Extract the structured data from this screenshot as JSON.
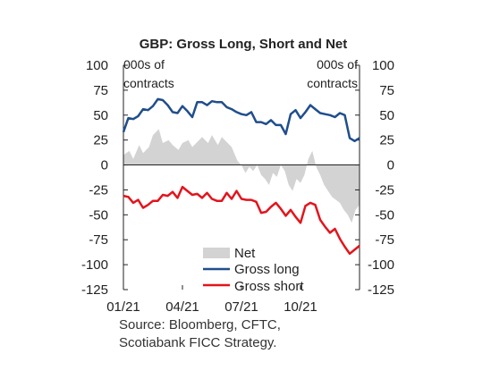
{
  "chart_data": {
    "type": "line",
    "title": "GBP: Gross Long, Short and Net",
    "left_unit": [
      "000s of",
      "contracts"
    ],
    "right_unit": [
      "000s of",
      "contracts"
    ],
    "ylim": [
      -125,
      100
    ],
    "yticks": [
      100,
      75,
      50,
      25,
      0,
      -25,
      -50,
      -75,
      -100,
      -125
    ],
    "xlim": [
      0,
      12
    ],
    "xticks": [
      {
        "x": 0,
        "label": "01/21"
      },
      {
        "x": 3,
        "label": "04/21"
      },
      {
        "x": 6,
        "label": "07/21"
      },
      {
        "x": 9,
        "label": "10/21"
      }
    ],
    "legend_position": "bottom-center",
    "series": [
      {
        "name": "Net",
        "kind": "area",
        "color": "#d3d3d3",
        "x": [
          0.0,
          0.3,
          0.5,
          0.8,
          1.0,
          1.3,
          1.5,
          1.8,
          2.0,
          2.3,
          2.5,
          2.8,
          3.0,
          3.3,
          3.5,
          3.8,
          4.0,
          4.3,
          4.5,
          4.8,
          5.0,
          5.2,
          5.5,
          5.8,
          6.0,
          6.2,
          6.4,
          6.6,
          6.8,
          7.0,
          7.2,
          7.4,
          7.6,
          7.8,
          8.0,
          8.2,
          8.4,
          8.6,
          8.8,
          9.0,
          9.2,
          9.4,
          9.6,
          9.8,
          10.0,
          10.2,
          10.4,
          10.6,
          10.8,
          11.0,
          11.2,
          11.4,
          11.6,
          11.8,
          12.0
        ],
        "values": [
          10,
          14,
          6,
          20,
          12,
          18,
          30,
          36,
          22,
          25,
          20,
          15,
          22,
          25,
          18,
          24,
          28,
          22,
          30,
          20,
          28,
          24,
          18,
          4,
          0,
          -8,
          -2,
          -6,
          0,
          -10,
          -14,
          -20,
          -8,
          -12,
          0,
          -6,
          -20,
          -26,
          -14,
          -18,
          -10,
          6,
          14,
          -2,
          -10,
          -20,
          -26,
          -32,
          -35,
          -38,
          -45,
          -50,
          -58,
          -45,
          -40
        ],
        "smooth": true
      },
      {
        "name": "Gross long",
        "kind": "line",
        "color": "#1f4e8c",
        "x": [
          0.0,
          0.25,
          0.5,
          0.75,
          1.0,
          1.25,
          1.5,
          1.75,
          2.0,
          2.25,
          2.5,
          2.75,
          3.0,
          3.25,
          3.5,
          3.75,
          4.0,
          4.25,
          4.5,
          4.75,
          5.0,
          5.25,
          5.5,
          5.75,
          6.0,
          6.25,
          6.5,
          6.75,
          7.0,
          7.25,
          7.5,
          7.75,
          8.0,
          8.25,
          8.5,
          8.75,
          9.0,
          9.25,
          9.5,
          9.75,
          10.0,
          10.25,
          10.5,
          10.75,
          11.0,
          11.25,
          11.5,
          11.75,
          12.0
        ],
        "values": [
          33,
          47,
          46,
          49,
          56,
          55,
          59,
          66,
          65,
          60,
          53,
          52,
          59,
          54,
          48,
          63,
          63,
          60,
          64,
          63,
          63,
          58,
          56,
          53,
          51,
          50,
          53,
          43,
          43,
          41,
          45,
          40,
          40,
          31,
          51,
          55,
          47,
          53,
          60,
          56,
          52,
          51,
          50,
          48,
          52,
          50,
          27,
          24,
          27
        ]
      },
      {
        "name": "Gross short",
        "kind": "line",
        "color": "#e3141d",
        "x": [
          0.0,
          0.25,
          0.5,
          0.75,
          1.0,
          1.25,
          1.5,
          1.75,
          2.0,
          2.25,
          2.5,
          2.75,
          3.0,
          3.25,
          3.5,
          3.75,
          4.0,
          4.25,
          4.5,
          4.75,
          5.0,
          5.25,
          5.5,
          5.75,
          6.0,
          6.25,
          6.5,
          6.75,
          7.0,
          7.25,
          7.5,
          7.75,
          8.0,
          8.25,
          8.5,
          8.75,
          9.0,
          9.25,
          9.5,
          9.75,
          10.0,
          10.25,
          10.5,
          10.75,
          11.0,
          11.25,
          11.5,
          11.75,
          12.0
        ],
        "values": [
          -31,
          -32,
          -38,
          -35,
          -43,
          -40,
          -36,
          -36,
          -30,
          -31,
          -27,
          -33,
          -22,
          -26,
          -30,
          -29,
          -33,
          -28,
          -34,
          -36,
          -36,
          -28,
          -34,
          -26,
          -34,
          -35,
          -35,
          -37,
          -48,
          -47,
          -42,
          -38,
          -44,
          -51,
          -45,
          -52,
          -58,
          -41,
          -38,
          -40,
          -55,
          -62,
          -68,
          -64,
          -74,
          -82,
          -89,
          -85,
          -81
        ]
      }
    ]
  },
  "source_lines": [
    "Source: Bloomberg, CFTC,",
    "Scotiabank FICC Strategy."
  ]
}
